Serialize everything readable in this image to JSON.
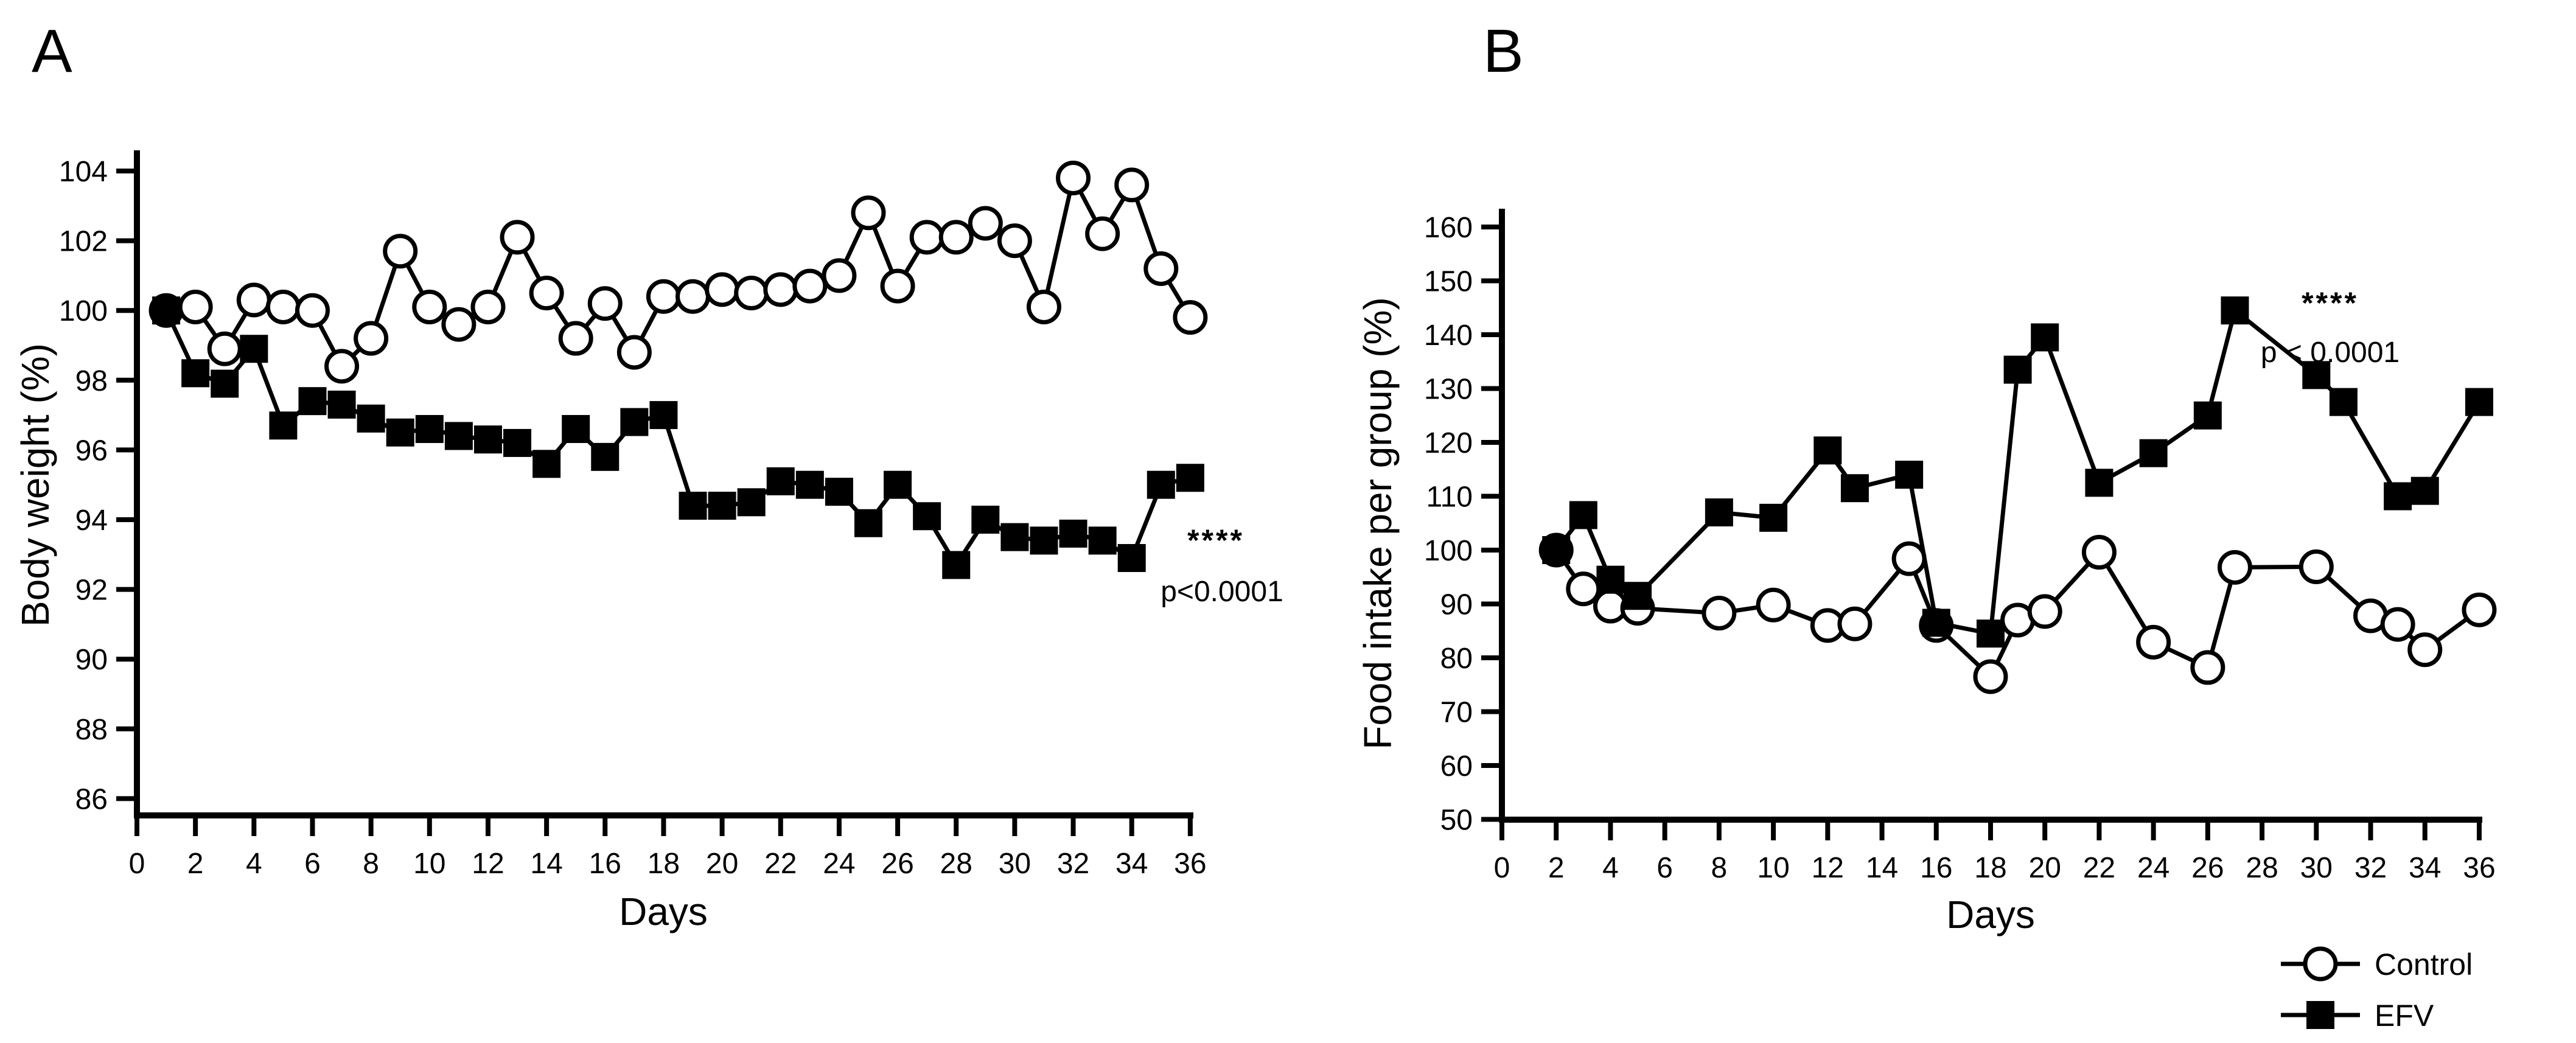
{
  "page": {
    "background": "#ffffff",
    "foreground": "#000000"
  },
  "chart_data": [
    {
      "type": "line",
      "panel_label": "A",
      "title": "",
      "xlabel": "Days",
      "ylabel": "Body weight (%)",
      "xlim": [
        0,
        36
      ],
      "ylim": [
        86,
        104
      ],
      "grid": false,
      "x_ticks": [
        0,
        2,
        4,
        6,
        8,
        10,
        12,
        14,
        16,
        18,
        20,
        22,
        24,
        26,
        28,
        30,
        32,
        34,
        36
      ],
      "y_ticks": [
        86,
        88,
        90,
        92,
        94,
        96,
        98,
        100,
        102,
        104
      ],
      "annotation": {
        "stars": "****",
        "p_text": "p<0.0001"
      },
      "series": [
        {
          "name": "Control",
          "marker": "open-circle",
          "x": [
            1,
            2,
            3,
            4,
            5,
            6,
            7,
            8,
            9,
            10,
            11,
            12,
            13,
            14,
            15,
            16,
            17,
            18,
            19,
            20,
            21,
            22,
            23,
            24,
            25,
            26,
            27,
            28,
            29,
            30,
            31,
            32,
            33,
            34,
            35,
            36
          ],
          "y": [
            100.0,
            100.1,
            98.9,
            100.3,
            100.1,
            100.0,
            98.4,
            99.2,
            101.7,
            100.1,
            99.6,
            100.1,
            102.1,
            100.5,
            99.2,
            100.2,
            98.8,
            100.4,
            100.4,
            100.6,
            100.5,
            100.6,
            100.7,
            101.0,
            102.8,
            100.7,
            102.1,
            102.1,
            102.5,
            102.0,
            100.1,
            103.8,
            102.2,
            103.6,
            101.2,
            99.8
          ]
        },
        {
          "name": "EFV",
          "marker": "filled-square",
          "x": [
            1,
            2,
            3,
            4,
            5,
            6,
            7,
            8,
            9,
            10,
            11,
            12,
            13,
            14,
            15,
            16,
            17,
            18,
            19,
            20,
            21,
            22,
            23,
            24,
            25,
            26,
            27,
            28,
            29,
            30,
            31,
            32,
            33,
            34,
            35,
            36
          ],
          "y": [
            100.0,
            98.2,
            97.9,
            98.9,
            96.7,
            97.4,
            97.3,
            96.9,
            96.5,
            96.6,
            96.4,
            96.3,
            96.2,
            95.6,
            96.6,
            95.8,
            96.8,
            97.0,
            94.4,
            94.4,
            94.5,
            95.1,
            95.0,
            94.8,
            93.9,
            95.0,
            94.1,
            92.7,
            94.0,
            93.5,
            93.4,
            93.6,
            93.4,
            92.9,
            95.0,
            95.2
          ]
        }
      ]
    },
    {
      "type": "line",
      "panel_label": "B",
      "title": "",
      "xlabel": "Days",
      "ylabel": "Food intake per group (%)",
      "xlim": [
        0,
        36
      ],
      "ylim": [
        50,
        160
      ],
      "grid": false,
      "x_ticks": [
        0,
        2,
        4,
        6,
        8,
        10,
        12,
        14,
        16,
        18,
        20,
        22,
        24,
        26,
        28,
        30,
        32,
        34,
        36
      ],
      "y_ticks": [
        50,
        60,
        70,
        80,
        90,
        100,
        110,
        120,
        130,
        140,
        150,
        160
      ],
      "annotation": {
        "stars": "****",
        "p_text": "p < 0.0001"
      },
      "series": [
        {
          "name": "Control",
          "marker": "open-circle",
          "x": [
            2,
            3,
            4,
            5,
            8,
            10,
            12,
            13,
            15,
            16,
            18,
            19,
            20,
            22,
            24,
            26,
            27,
            30,
            32,
            33,
            34,
            36
          ],
          "y": [
            100.0,
            92.8,
            89.6,
            89.2,
            88.3,
            89.8,
            86.0,
            86.3,
            98.4,
            86.0,
            76.5,
            87.0,
            88.6,
            99.6,
            82.9,
            78.2,
            96.8,
            96.9,
            87.8,
            86.2,
            81.5,
            88.9
          ]
        },
        {
          "name": "EFV",
          "marker": "filled-square",
          "x": [
            2,
            3,
            4,
            5,
            8,
            10,
            12,
            13,
            15,
            16,
            18,
            19,
            20,
            22,
            24,
            26,
            27,
            30,
            31,
            33,
            34,
            36
          ],
          "y": [
            100.0,
            106.5,
            94.5,
            91.5,
            107.0,
            106.0,
            118.5,
            111.5,
            114.0,
            86.5,
            84.5,
            133.5,
            139.5,
            112.5,
            118.0,
            125.0,
            144.5,
            132.5,
            127.5,
            110.0,
            111.0,
            127.5
          ]
        }
      ]
    }
  ],
  "legend": {
    "items": [
      {
        "label": "Control",
        "marker": "open-circle"
      },
      {
        "label": "EFV",
        "marker": "filled-square"
      }
    ]
  }
}
